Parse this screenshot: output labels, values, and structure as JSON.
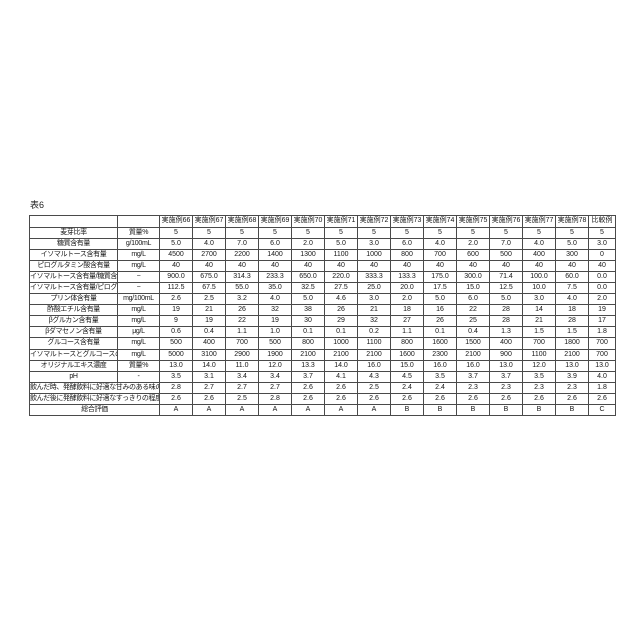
{
  "caption": "表6",
  "table": {
    "corner_label": "",
    "unit_header": "",
    "col_headers": [
      "実施例66",
      "実施例67",
      "実施例68",
      "実施例69",
      "実施例70",
      "実施例71",
      "実施例72",
      "実施例73",
      "実施例74",
      "実施例75",
      "実施例76",
      "実施例77",
      "実施例78",
      "比較例"
    ],
    "rows": [
      {
        "label": "麦芽比率",
        "unit": "質量%",
        "span": false,
        "values": [
          "5",
          "5",
          "5",
          "5",
          "5",
          "5",
          "5",
          "5",
          "5",
          "5",
          "5",
          "5",
          "5",
          "5"
        ]
      },
      {
        "label": "糖質含有量",
        "unit": "g/100mL",
        "span": false,
        "values": [
          "5.0",
          "4.0",
          "7.0",
          "6.0",
          "2.0",
          "5.0",
          "3.0",
          "6.0",
          "4.0",
          "2.0",
          "7.0",
          "4.0",
          "5.0",
          "3.0"
        ]
      },
      {
        "label": "イソマルトース含有量",
        "unit": "mg/L",
        "span": false,
        "values": [
          "4500",
          "2700",
          "2200",
          "1400",
          "1300",
          "1100",
          "1000",
          "800",
          "700",
          "600",
          "500",
          "400",
          "300",
          "0"
        ]
      },
      {
        "label": "ピログルタミン酸含有量",
        "unit": "mg/L",
        "span": false,
        "values": [
          "40",
          "40",
          "40",
          "40",
          "40",
          "40",
          "40",
          "40",
          "40",
          "40",
          "40",
          "40",
          "40",
          "40"
        ]
      },
      {
        "label": "イソマルトース含有量/糖質含有量",
        "unit": "−",
        "span": false,
        "values": [
          "900.0",
          "675.0",
          "314.3",
          "233.3",
          "650.0",
          "220.0",
          "333.3",
          "133.3",
          "175.0",
          "300.0",
          "71.4",
          "100.0",
          "60.0",
          "0.0"
        ]
      },
      {
        "label": "イソマルトース含有量/ピログルタミン酸含有量",
        "unit": "−",
        "span": false,
        "values": [
          "112.5",
          "67.5",
          "55.0",
          "35.0",
          "32.5",
          "27.5",
          "25.0",
          "20.0",
          "17.5",
          "15.0",
          "12.5",
          "10.0",
          "7.5",
          "0.0"
        ]
      },
      {
        "label": "プリン体含有量",
        "unit": "mg/100mL",
        "span": false,
        "values": [
          "2.6",
          "2.5",
          "3.2",
          "4.0",
          "5.0",
          "4.6",
          "3.0",
          "2.0",
          "5.0",
          "6.0",
          "5.0",
          "3.0",
          "4.0",
          "2.0"
        ]
      },
      {
        "label": "酢酸エチル含有量",
        "unit": "mg/L",
        "span": false,
        "values": [
          "19",
          "21",
          "26",
          "32",
          "38",
          "26",
          "21",
          "18",
          "16",
          "22",
          "28",
          "14",
          "18",
          "19"
        ]
      },
      {
        "label": "βグルカン含有量",
        "unit": "mg/L",
        "span": false,
        "values": [
          "9",
          "19",
          "22",
          "19",
          "30",
          "29",
          "32",
          "27",
          "26",
          "25",
          "28",
          "21",
          "28",
          "17"
        ]
      },
      {
        "label": "βダマセノン含有量",
        "unit": "μg/L",
        "span": false,
        "values": [
          "0.6",
          "0.4",
          "1.1",
          "1.0",
          "0.1",
          "0.1",
          "0.2",
          "1.1",
          "0.1",
          "0.4",
          "1.3",
          "1.5",
          "1.5",
          "1.8"
        ]
      },
      {
        "label": "グルコース含有量",
        "unit": "mg/L",
        "span": false,
        "values": [
          "500",
          "400",
          "700",
          "500",
          "800",
          "1000",
          "1100",
          "800",
          "1600",
          "1500",
          "400",
          "700",
          "1800",
          "700"
        ]
      },
      {
        "label": "イソマルトースとグルコースの合計含有量",
        "unit": "mg/L",
        "span": false,
        "values": [
          "5000",
          "3100",
          "2900",
          "1900",
          "2100",
          "2100",
          "2100",
          "1600",
          "2300",
          "2100",
          "900",
          "1100",
          "2100",
          "700"
        ]
      },
      {
        "label": "オリジナルエキス濃度",
        "unit": "質量%",
        "span": false,
        "values": [
          "13.0",
          "14.0",
          "11.0",
          "12.0",
          "13.3",
          "14.0",
          "16.0",
          "15.0",
          "16.0",
          "16.0",
          "13.0",
          "12.0",
          "13.0",
          "13.0"
        ]
      },
      {
        "label": "pH",
        "unit": "-",
        "span": false,
        "values": [
          "3.5",
          "3.1",
          "3.4",
          "3.4",
          "3.7",
          "4.1",
          "4.3",
          "4.5",
          "3.5",
          "3.7",
          "3.7",
          "3.5",
          "3.9",
          "4.0"
        ]
      },
      {
        "label": "飲んだ時、発酵飲料に好適な甘みのある味の程度",
        "unit": "",
        "span": true,
        "values": [
          "2.8",
          "2.7",
          "2.7",
          "2.7",
          "2.6",
          "2.6",
          "2.5",
          "2.4",
          "2.4",
          "2.3",
          "2.3",
          "2.3",
          "2.3",
          "1.8"
        ]
      },
      {
        "label": "飲んだ後に発酵飲料に好適なすっきりの程度",
        "unit": "",
        "span": true,
        "values": [
          "2.6",
          "2.6",
          "2.5",
          "2.8",
          "2.6",
          "2.6",
          "2.6",
          "2.6",
          "2.6",
          "2.6",
          "2.6",
          "2.6",
          "2.6",
          "2.6"
        ]
      },
      {
        "label": "総合評価",
        "unit": "",
        "span": true,
        "values": [
          "A",
          "A",
          "A",
          "A",
          "A",
          "A",
          "A",
          "B",
          "B",
          "B",
          "B",
          "B",
          "B",
          "C"
        ]
      }
    ]
  }
}
